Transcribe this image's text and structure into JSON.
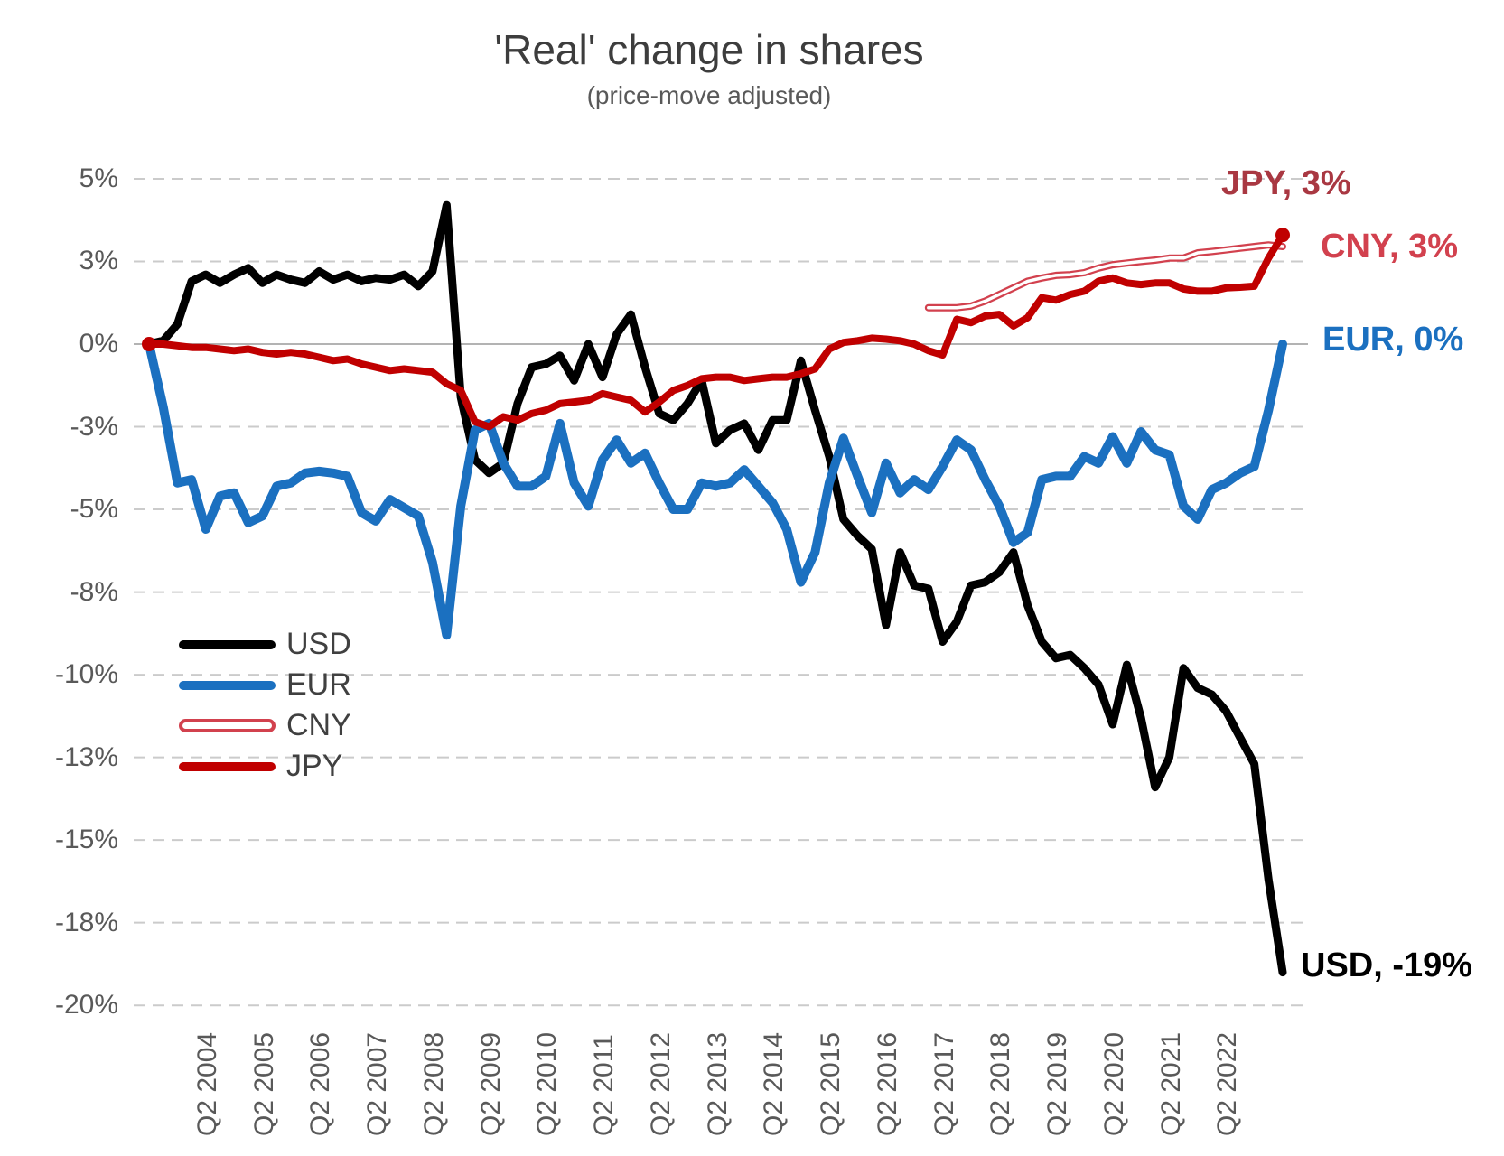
{
  "chart_data": {
    "type": "line",
    "title": "'Real' change in shares",
    "subtitle": "(price-move adjusted)",
    "background": "#ffffff",
    "x_unit": "quarters",
    "x_range": [
      "2003-Q2",
      "2023-Q2"
    ],
    "x_tick_labels": [
      "Q2 2004",
      "Q2 2005",
      "Q2 2006",
      "Q2 2007",
      "Q2 2008",
      "Q2 2009",
      "Q2 2010",
      "Q2 2011",
      "Q2 2012",
      "Q2 2013",
      "Q2 2014",
      "Q2 2015",
      "Q2 2016",
      "Q2 2017",
      "Q2 2018",
      "Q2 2019",
      "Q2 2020",
      "Q2 2021",
      "Q2 2022"
    ],
    "y_tick_labels": [
      "5%",
      "3%",
      "0%",
      "-3%",
      "-5%",
      "-8%",
      "-10%",
      "-13%",
      "-15%",
      "-18%",
      "-20%"
    ],
    "y_tick_values": [
      5,
      2.5,
      0,
      -2.5,
      -5,
      -7.5,
      -10,
      -12.5,
      -15,
      -17.5,
      -20
    ],
    "ylim": [
      -20,
      5
    ],
    "grid": "horizontal-dashed",
    "grid_color": "#cbcbcb",
    "zero_line_color": "#b3b3b3",
    "legend_position": "middle-left",
    "quarters": [
      "2003-Q2",
      "2003-Q3",
      "2003-Q4",
      "2004-Q1",
      "2004-Q2",
      "2004-Q3",
      "2004-Q4",
      "2005-Q1",
      "2005-Q2",
      "2005-Q3",
      "2005-Q4",
      "2006-Q1",
      "2006-Q2",
      "2006-Q3",
      "2006-Q4",
      "2007-Q1",
      "2007-Q2",
      "2007-Q3",
      "2007-Q4",
      "2008-Q1",
      "2008-Q2",
      "2008-Q3",
      "2008-Q4",
      "2009-Q1",
      "2009-Q2",
      "2009-Q3",
      "2009-Q4",
      "2010-Q1",
      "2010-Q2",
      "2010-Q3",
      "2010-Q4",
      "2011-Q1",
      "2011-Q2",
      "2011-Q3",
      "2011-Q4",
      "2012-Q1",
      "2012-Q2",
      "2012-Q3",
      "2012-Q4",
      "2013-Q1",
      "2013-Q2",
      "2013-Q3",
      "2013-Q4",
      "2014-Q1",
      "2014-Q2",
      "2014-Q3",
      "2014-Q4",
      "2015-Q1",
      "2015-Q2",
      "2015-Q3",
      "2015-Q4",
      "2016-Q1",
      "2016-Q2",
      "2016-Q3",
      "2016-Q4",
      "2017-Q1",
      "2017-Q2",
      "2017-Q3",
      "2017-Q4",
      "2018-Q1",
      "2018-Q2",
      "2018-Q3",
      "2018-Q4",
      "2019-Q1",
      "2019-Q2",
      "2019-Q3",
      "2019-Q4",
      "2020-Q1",
      "2020-Q2",
      "2020-Q3",
      "2020-Q4",
      "2021-Q1",
      "2021-Q2",
      "2021-Q3",
      "2021-Q4",
      "2022-Q1",
      "2022-Q2",
      "2022-Q3",
      "2022-Q4",
      "2023-Q1",
      "2023-Q2"
    ],
    "series": [
      {
        "name": "USD",
        "color": "#000000",
        "label_color": "#000000",
        "line_width": 9,
        "style": "solid",
        "end_label": "USD, -19%",
        "end_value": -19,
        "start_index": 0,
        "values": [
          0.0,
          0.1,
          0.6,
          1.9,
          2.1,
          1.85,
          2.1,
          2.3,
          1.85,
          2.1,
          1.95,
          1.85,
          2.2,
          1.95,
          2.1,
          1.9,
          2.0,
          1.95,
          2.1,
          1.75,
          2.2,
          4.2,
          -1.6,
          -3.5,
          -3.9,
          -3.6,
          -1.8,
          -0.7,
          -0.6,
          -0.35,
          -1.1,
          0.0,
          -1.0,
          0.3,
          0.9,
          -0.7,
          -2.1,
          -2.3,
          -1.8,
          -1.1,
          -3.0,
          -2.6,
          -2.4,
          -3.2,
          -2.3,
          -2.3,
          -0.5,
          -2.0,
          -3.4,
          -5.3,
          -5.8,
          -6.2,
          -8.5,
          -6.3,
          -7.3,
          -7.4,
          -9.0,
          -8.4,
          -7.3,
          -7.2,
          -6.9,
          -6.3,
          -7.9,
          -9.0,
          -9.5,
          -9.4,
          -9.8,
          -10.3,
          -11.5,
          -9.7,
          -11.3,
          -13.4,
          -12.5,
          -9.8,
          -10.4,
          -10.6,
          -11.1,
          -11.9,
          -12.7,
          -16.2,
          -19.0
        ]
      },
      {
        "name": "EUR",
        "color": "#1B70C0",
        "label_color": "#1B70C0",
        "line_width": 10,
        "style": "solid",
        "end_label": "EUR, 0%",
        "end_value": 0,
        "start_index": 0,
        "values": [
          0.0,
          -1.9,
          -4.2,
          -4.1,
          -5.6,
          -4.6,
          -4.5,
          -5.4,
          -5.2,
          -4.3,
          -4.2,
          -3.9,
          -3.85,
          -3.9,
          -4.0,
          -5.1,
          -5.35,
          -4.7,
          -4.95,
          -5.2,
          -6.6,
          -8.8,
          -4.9,
          -2.6,
          -2.4,
          -3.6,
          -4.3,
          -4.3,
          -4.0,
          -2.4,
          -4.2,
          -4.9,
          -3.5,
          -2.9,
          -3.6,
          -3.3,
          -4.2,
          -5.0,
          -5.0,
          -4.2,
          -4.3,
          -4.2,
          -3.8,
          -4.3,
          -4.8,
          -5.6,
          -7.2,
          -6.3,
          -4.2,
          -2.85,
          -4.0,
          -5.1,
          -3.6,
          -4.5,
          -4.1,
          -4.4,
          -3.7,
          -2.9,
          -3.2,
          -4.1,
          -4.9,
          -6.0,
          -5.7,
          -4.1,
          -4.0,
          -4.0,
          -3.4,
          -3.6,
          -2.8,
          -3.6,
          -2.65,
          -3.2,
          -3.35,
          -4.9,
          -5.3,
          -4.4,
          -4.2,
          -3.9,
          -3.7,
          -2.0,
          0.0
        ]
      },
      {
        "name": "CNY",
        "color": "#D2414E",
        "label_color": "#D2414E",
        "line_width": 8,
        "style": "hollow",
        "end_label": "CNY, 3%",
        "end_value": 3,
        "start_index": 55,
        "values": [
          1.1,
          1.1,
          1.1,
          1.15,
          1.3,
          1.5,
          1.7,
          1.9,
          2.0,
          2.08,
          2.1,
          2.16,
          2.3,
          2.4,
          2.45,
          2.5,
          2.54,
          2.6,
          2.6,
          2.76,
          2.8,
          2.85,
          2.9,
          2.95,
          3.0,
          2.95
        ]
      },
      {
        "name": "JPY",
        "color": "#C00000",
        "label_color": "#A93842",
        "line_width": 8,
        "style": "solid",
        "start_dot": true,
        "end_dot": true,
        "end_label": "JPY, 3%",
        "end_value": 3,
        "start_index": 0,
        "values": [
          0.0,
          0.0,
          -0.05,
          -0.1,
          -0.1,
          -0.15,
          -0.2,
          -0.15,
          -0.25,
          -0.3,
          -0.25,
          -0.3,
          -0.4,
          -0.5,
          -0.45,
          -0.6,
          -0.7,
          -0.8,
          -0.75,
          -0.8,
          -0.85,
          -1.2,
          -1.4,
          -2.35,
          -2.5,
          -2.2,
          -2.3,
          -2.1,
          -2.0,
          -1.8,
          -1.75,
          -1.7,
          -1.5,
          -1.6,
          -1.7,
          -2.05,
          -1.75,
          -1.4,
          -1.25,
          -1.05,
          -1.0,
          -1.0,
          -1.1,
          -1.05,
          -1.0,
          -1.0,
          -0.9,
          -0.75,
          -0.15,
          0.05,
          0.1,
          0.18,
          0.15,
          0.1,
          0.0,
          -0.2,
          -0.33,
          0.75,
          0.65,
          0.85,
          0.9,
          0.55,
          0.8,
          1.4,
          1.33,
          1.5,
          1.6,
          1.9,
          2.0,
          1.85,
          1.8,
          1.85,
          1.85,
          1.67,
          1.6,
          1.6,
          1.7,
          1.72,
          1.75,
          2.6,
          3.3
        ]
      }
    ]
  }
}
